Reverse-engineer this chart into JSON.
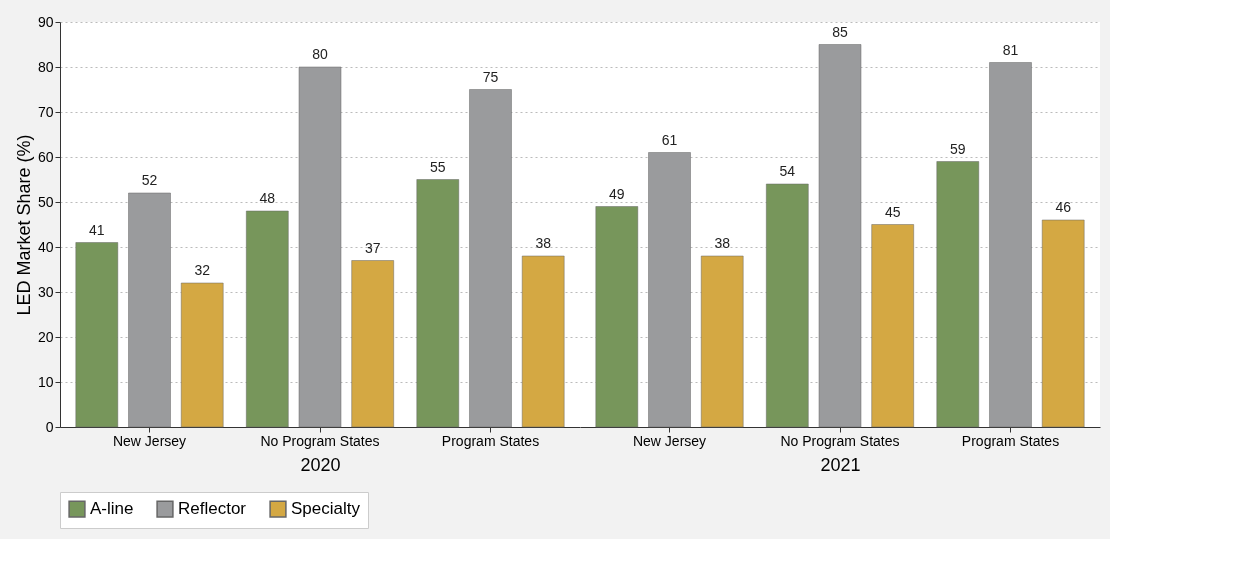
{
  "chart_data": [
    {
      "type": "bar",
      "xlabel": "2020",
      "ylabel": "LED Market Share (%)",
      "categories": [
        "New Jersey",
        "No Program States",
        "Program States"
      ],
      "series": [
        {
          "name": "A-line",
          "color": "#77965b",
          "values": [
            41,
            48,
            55
          ]
        },
        {
          "name": "Reflector",
          "color": "#9a9b9d",
          "values": [
            52,
            80,
            75
          ]
        },
        {
          "name": "Specialty",
          "color": "#d4a843",
          "values": [
            32,
            37,
            38
          ]
        }
      ],
      "ylim": [
        0,
        90
      ],
      "yticks": [
        0,
        10,
        20,
        30,
        40,
        50,
        60,
        70,
        80,
        90
      ],
      "grid": "y",
      "legend": "bottom",
      "data_labels": true
    },
    {
      "type": "bar",
      "xlabel": "2021",
      "categories": [
        "New Jersey",
        "No Program States",
        "Program States"
      ],
      "series": [
        {
          "name": "A-line",
          "color": "#77965b",
          "values": [
            49,
            54,
            59
          ]
        },
        {
          "name": "Reflector",
          "color": "#9a9b9d",
          "values": [
            61,
            85,
            81
          ]
        },
        {
          "name": "Specialty",
          "color": "#d4a843",
          "values": [
            38,
            45,
            46
          ]
        }
      ],
      "ylim": [
        0,
        90
      ],
      "yticks": [
        0,
        10,
        20,
        30,
        40,
        50,
        60,
        70,
        80,
        90
      ],
      "grid": "y",
      "legend": "bottom",
      "data_labels": true,
      "tick_labels": "x"
    }
  ]
}
